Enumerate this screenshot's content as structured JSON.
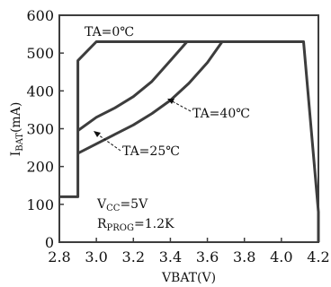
{
  "chart_data": {
    "type": "line",
    "xlabel": "VBAT(V)",
    "ylabel_main": "I",
    "ylabel_sub": "BAT",
    "ylabel_unit": "(mA)",
    "xlim": [
      2.8,
      4.2
    ],
    "ylim": [
      0,
      600
    ],
    "xticks": [
      "2.8",
      "3.0",
      "3.2",
      "3.4",
      "3.6",
      "3.8",
      "4.0",
      "4.2"
    ],
    "yticks": [
      "0",
      "100",
      "200",
      "300",
      "400",
      "500",
      "600"
    ],
    "grid": false,
    "line_color": "#3d3d3d",
    "series": [
      {
        "name": "TA=0℃",
        "points": [
          [
            2.8,
            120
          ],
          [
            2.9,
            120
          ],
          [
            2.9,
            480
          ],
          [
            3.0,
            530
          ],
          [
            4.12,
            530
          ],
          [
            4.2,
            80
          ],
          [
            4.2,
            0
          ]
        ]
      },
      {
        "name": "TA=25℃",
        "points": [
          [
            2.9,
            295
          ],
          [
            3.0,
            330
          ],
          [
            3.1,
            355
          ],
          [
            3.2,
            385
          ],
          [
            3.3,
            425
          ],
          [
            3.4,
            480
          ],
          [
            3.49,
            530
          ]
        ]
      },
      {
        "name": "TA=40℃",
        "points": [
          [
            2.9,
            235
          ],
          [
            3.0,
            260
          ],
          [
            3.1,
            285
          ],
          [
            3.2,
            310
          ],
          [
            3.3,
            340
          ],
          [
            3.4,
            375
          ],
          [
            3.5,
            420
          ],
          [
            3.6,
            475
          ],
          [
            3.68,
            530
          ]
        ]
      }
    ],
    "annotations": {
      "ta0": "TA=0℃",
      "ta40": "TA=40℃",
      "ta25": "TA=25℃",
      "vcc_main": "V",
      "vcc_sub": "CC",
      "vcc_val": "=5V",
      "rprog_main": "R",
      "rprog_sub": "PROG",
      "rprog_val": "=1.2K"
    }
  }
}
